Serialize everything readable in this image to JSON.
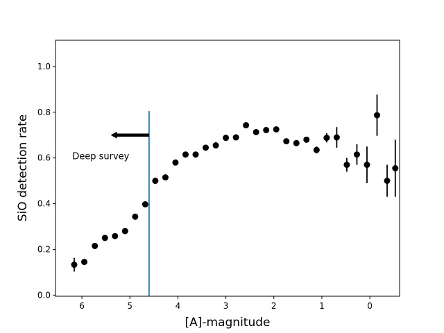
{
  "chart_data": {
    "type": "scatter",
    "xlabel": "[A]-magnitude",
    "ylabel": "SiO detection rate",
    "xlim": [
      6.55,
      -0.62
    ],
    "ylim": [
      -0.005,
      1.115
    ],
    "x_ticks": [
      6,
      5,
      4,
      3,
      2,
      1,
      0
    ],
    "y_ticks": [
      0.0,
      0.2,
      0.4,
      0.6,
      0.8,
      1.0
    ],
    "x_tick_labels": [
      "6",
      "5",
      "4",
      "3",
      "2",
      "1",
      "0"
    ],
    "y_tick_labels": [
      "0.0",
      "0.2",
      "0.4",
      "0.6",
      "0.8",
      "1.0"
    ],
    "grid": false,
    "marker_color": "#000000",
    "series": [
      {
        "points": [
          {
            "x": 6.16,
            "y": 0.133,
            "yerr": 0.03
          },
          {
            "x": 5.95,
            "y": 0.145,
            "yerr": 0
          },
          {
            "x": 5.73,
            "y": 0.215,
            "yerr": 0
          },
          {
            "x": 5.52,
            "y": 0.25,
            "yerr": 0
          },
          {
            "x": 5.31,
            "y": 0.258,
            "yerr": 0
          },
          {
            "x": 5.1,
            "y": 0.28,
            "yerr": 0
          },
          {
            "x": 4.89,
            "y": 0.343,
            "yerr": 0
          },
          {
            "x": 4.68,
            "y": 0.397,
            "yerr": 0
          },
          {
            "x": 4.47,
            "y": 0.5,
            "yerr": 0
          },
          {
            "x": 4.26,
            "y": 0.515,
            "yerr": 0
          },
          {
            "x": 4.05,
            "y": 0.58,
            "yerr": 0
          },
          {
            "x": 3.84,
            "y": 0.615,
            "yerr": 0
          },
          {
            "x": 3.63,
            "y": 0.615,
            "yerr": 0
          },
          {
            "x": 3.42,
            "y": 0.645,
            "yerr": 0
          },
          {
            "x": 3.21,
            "y": 0.655,
            "yerr": 0
          },
          {
            "x": 3.0,
            "y": 0.688,
            "yerr": 0
          },
          {
            "x": 2.79,
            "y": 0.69,
            "yerr": 0
          },
          {
            "x": 2.58,
            "y": 0.743,
            "yerr": 0
          },
          {
            "x": 2.37,
            "y": 0.713,
            "yerr": 0
          },
          {
            "x": 2.16,
            "y": 0.722,
            "yerr": 0
          },
          {
            "x": 1.95,
            "y": 0.725,
            "yerr": 0
          },
          {
            "x": 1.74,
            "y": 0.673,
            "yerr": 0
          },
          {
            "x": 1.53,
            "y": 0.665,
            "yerr": 0
          },
          {
            "x": 1.32,
            "y": 0.68,
            "yerr": 0
          },
          {
            "x": 1.11,
            "y": 0.635,
            "yerr": 0.015
          },
          {
            "x": 0.9,
            "y": 0.688,
            "yerr": 0.02
          },
          {
            "x": 0.69,
            "y": 0.69,
            "yerr": 0.045
          },
          {
            "x": 0.48,
            "y": 0.57,
            "yerr": 0.03
          },
          {
            "x": 0.27,
            "y": 0.615,
            "yerr": 0.045
          },
          {
            "x": 0.06,
            "y": 0.57,
            "yerr": 0.08
          },
          {
            "x": -0.15,
            "y": 0.787,
            "yerr": 0.09
          },
          {
            "x": -0.36,
            "y": 0.5,
            "yerr": 0.07
          },
          {
            "x": -0.53,
            "y": 0.555,
            "yerr": 0.125
          }
        ]
      }
    ],
    "vertical_line": {
      "x": 4.6,
      "y_top": 0.805,
      "color": "#1f77b4"
    },
    "arrow": {
      "x_start": 4.6,
      "x_end": 5.4,
      "y": 0.7,
      "color": "#000000"
    },
    "annotation": {
      "text": "Deep survey",
      "x": 6.2,
      "y": 0.61
    }
  }
}
